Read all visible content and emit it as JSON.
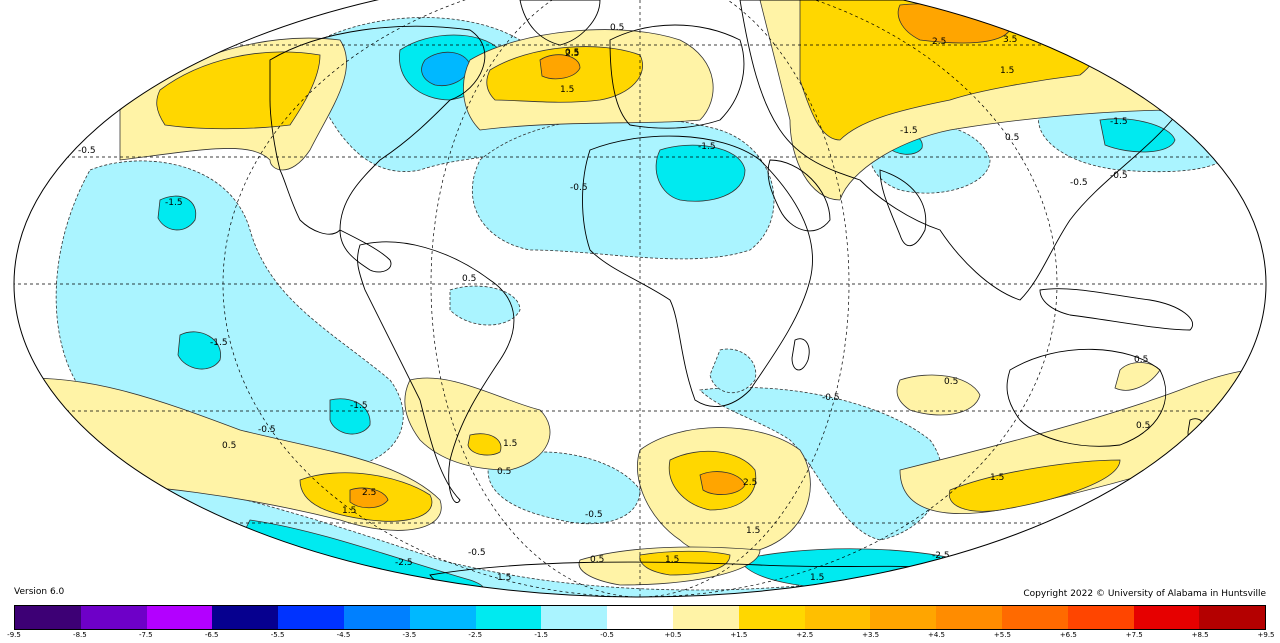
{
  "footer": {
    "version": "Version 6.0",
    "copyright": "Copyright 2022 © University of Alabama in Huntsville"
  },
  "colorbar": {
    "colors": [
      "#3d0075",
      "#6e00c8",
      "#b300ff",
      "#06008f",
      "#0033ff",
      "#0080ff",
      "#00b8ff",
      "#00eaf0",
      "#aaf4ff",
      "#ffffff",
      "#fff3a6",
      "#ffd700",
      "#ffbf00",
      "#ffa500",
      "#ff8c00",
      "#ff6a00",
      "#ff4500",
      "#e60000",
      "#b40000"
    ],
    "ticks": [
      "-9.5",
      "-8.5",
      "-7.5",
      "-6.5",
      "-5.5",
      "-4.5",
      "-3.5",
      "-2.5",
      "-1.5",
      "-0.5",
      "+0.5",
      "+1.5",
      "+2.5",
      "+3.5",
      "+4.5",
      "+5.5",
      "+6.5",
      "+7.5",
      "+8.5",
      "+9.5"
    ]
  },
  "map_colors": {
    "ocean": "#ffffff",
    "neg_light": "#aaf4ff",
    "neg_mid": "#00eaf0",
    "neg_strong": "#00b8ff",
    "pos_light": "#fff3a6",
    "pos_mid": "#ffd700",
    "pos_strong": "#ffa500"
  },
  "contour_labels": [
    "0.5",
    "2.5",
    "1.5",
    "-1.5",
    "-0.5",
    "3.5",
    "-2.5",
    "-3.5"
  ]
}
